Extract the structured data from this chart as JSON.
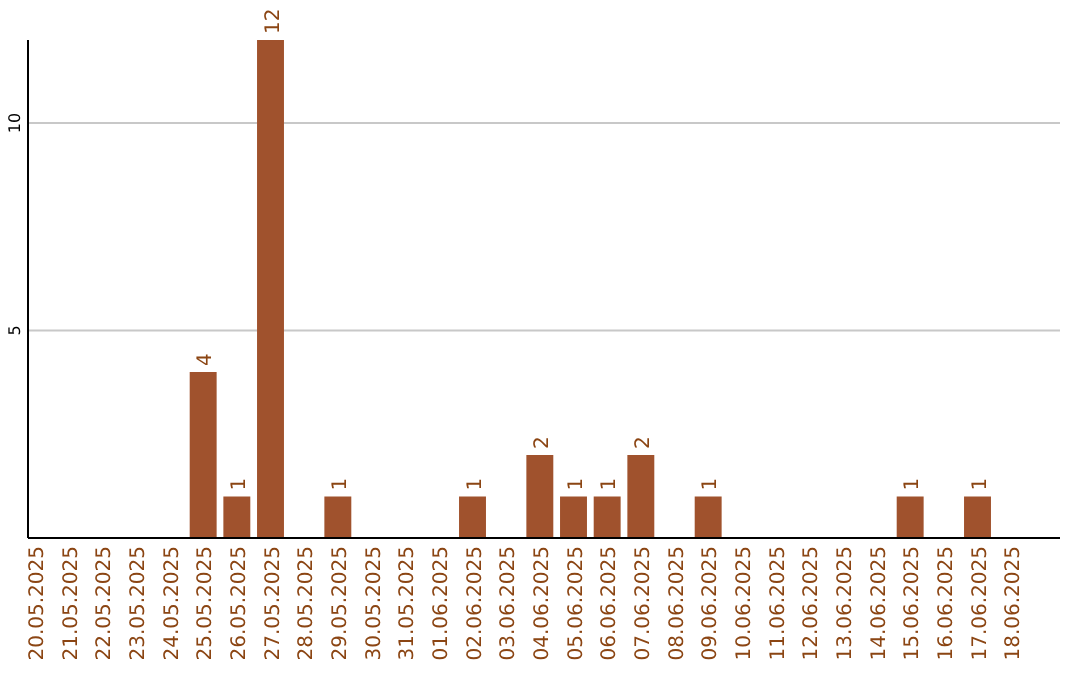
{
  "chart_data": {
    "type": "bar",
    "categories": [
      "20.05.2025",
      "21.05.2025",
      "22.05.2025",
      "23.05.2025",
      "24.05.2025",
      "25.05.2025",
      "26.05.2025",
      "27.05.2025",
      "28.05.2025",
      "29.05.2025",
      "30.05.2025",
      "31.05.2025",
      "01.06.2025",
      "02.06.2025",
      "03.06.2025",
      "04.06.2025",
      "05.06.2025",
      "06.06.2025",
      "07.06.2025",
      "08.06.2025",
      "09.06.2025",
      "10.06.2025",
      "11.06.2025",
      "12.06.2025",
      "13.06.2025",
      "14.06.2025",
      "15.06.2025",
      "16.06.2025",
      "17.06.2025",
      "18.06.2025"
    ],
    "values": [
      0,
      0,
      0,
      0,
      0,
      4,
      1,
      12,
      0,
      1,
      0,
      0,
      0,
      1,
      0,
      2,
      1,
      1,
      2,
      0,
      1,
      0,
      0,
      0,
      0,
      0,
      1,
      0,
      1,
      0
    ],
    "value_labels": [
      null,
      null,
      null,
      null,
      null,
      "4",
      "1",
      "12",
      null,
      "1",
      null,
      null,
      null,
      "1",
      null,
      "2",
      "1",
      "1",
      "2",
      null,
      "1",
      null,
      null,
      null,
      null,
      null,
      "1",
      null,
      "1",
      null
    ],
    "color": "#a0522d",
    "ylim": [
      0,
      12
    ],
    "yticks": [
      5,
      10
    ],
    "grid": "y"
  }
}
